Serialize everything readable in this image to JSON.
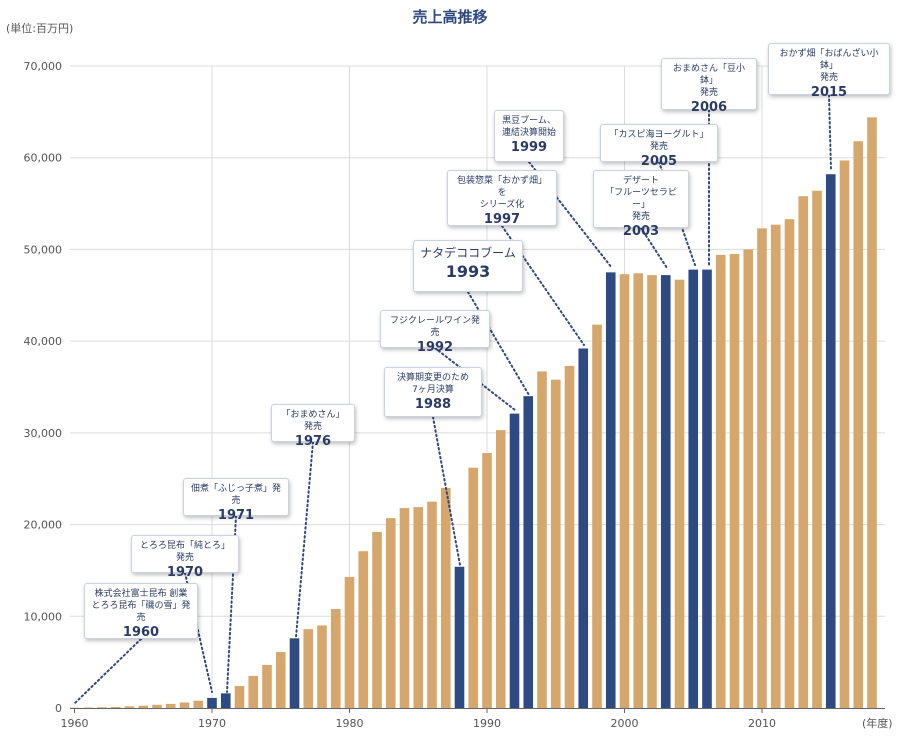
{
  "page": {
    "title": "売上高推移",
    "unit": "(単位:百万円)",
    "x_unit": "(年度)"
  },
  "colors": {
    "regular": "#d5a76c",
    "highlight": "#2e4a83",
    "grid": "#dcdcdc",
    "axis": "#666666"
  },
  "chart_data": {
    "type": "bar",
    "title": "売上高推移",
    "ylabel": "(単位:百万円)",
    "xlabel": "(年度)",
    "ylim": [
      0,
      70000
    ],
    "yticks": [
      0,
      10000,
      20000,
      30000,
      40000,
      50000,
      60000,
      70000
    ],
    "ytick_labels": [
      "0",
      "10,000",
      "20,000",
      "30,000",
      "40,000",
      "50,000",
      "60,000",
      "70,000"
    ],
    "xticks": [
      1960,
      1970,
      1980,
      1990,
      2000,
      2010
    ],
    "xtick_labels": [
      "1960",
      "1970",
      "1980",
      "1990",
      "2000",
      "2010"
    ],
    "grid": true,
    "x": [
      1960,
      1961,
      1962,
      1963,
      1964,
      1965,
      1966,
      1967,
      1968,
      1969,
      1970,
      1971,
      1972,
      1973,
      1974,
      1975,
      1976,
      1977,
      1978,
      1979,
      1980,
      1981,
      1982,
      1983,
      1984,
      1985,
      1986,
      1987,
      1988,
      1989,
      1990,
      1991,
      1992,
      1993,
      1994,
      1995,
      1996,
      1997,
      1998,
      1999,
      2000,
      2001,
      2002,
      2003,
      2004,
      2005,
      2006,
      2007,
      2008,
      2009,
      2010,
      2011,
      2012,
      2013,
      2014,
      2015,
      2016,
      2017,
      2018
    ],
    "values": [
      30,
      50,
      80,
      120,
      180,
      250,
      350,
      450,
      600,
      800,
      1100,
      1600,
      2400,
      3500,
      4700,
      6100,
      7600,
      8600,
      9000,
      10800,
      14300,
      17100,
      19200,
      20700,
      21800,
      21900,
      22500,
      24000,
      15400,
      26200,
      27800,
      30300,
      32100,
      34000,
      36700,
      35800,
      37300,
      39200,
      41800,
      47500,
      47300,
      47400,
      47200,
      47200,
      46700,
      47800,
      47800,
      49400,
      49500,
      50000,
      52300,
      52700,
      53300,
      55800,
      56400,
      58200,
      59700,
      61800,
      64400
    ],
    "highlight_years": [
      1970,
      1971,
      1976,
      1988,
      1992,
      1993,
      1997,
      1999,
      2003,
      2005,
      2006,
      2015
    ]
  },
  "callouts": [
    {
      "id": "1960",
      "desc": "株式会社富士昆布 創業\nとろろ昆布「磯の雪」発売",
      "year": "1960"
    },
    {
      "id": "1970",
      "desc": "とろろ昆布「純とろ」発売",
      "year": "1970"
    },
    {
      "id": "1971",
      "desc": "佃煮「ふじっ子煮」発売",
      "year": "1971"
    },
    {
      "id": "1976",
      "desc": "「おまめさん」発売",
      "year": "1976"
    },
    {
      "id": "1988",
      "desc": "決算期変更のため\n7ヶ月決算",
      "year": "1988"
    },
    {
      "id": "1992",
      "desc": "フジクレールワイン発売",
      "year": "1992"
    },
    {
      "id": "1993",
      "desc": "ナタデココブーム",
      "year": "1993"
    },
    {
      "id": "1997",
      "desc": "包装惣菜「おかず畑」を\nシリーズ化",
      "year": "1997"
    },
    {
      "id": "1999",
      "desc": "黒豆ブーム、\n連結決算開始",
      "year": "1999"
    },
    {
      "id": "2003",
      "desc": "デザート\n「フルーツセラピー」\n発売",
      "year": "2003"
    },
    {
      "id": "2005",
      "desc": "「カスピ海ヨーグルト」発売",
      "year": "2005"
    },
    {
      "id": "2006",
      "desc": "おまめさん「豆小鉢」\n発売",
      "year": "2006"
    },
    {
      "id": "2015",
      "desc": "おかず畑「おばんざい小鉢」\n発売",
      "year": "2015"
    }
  ]
}
